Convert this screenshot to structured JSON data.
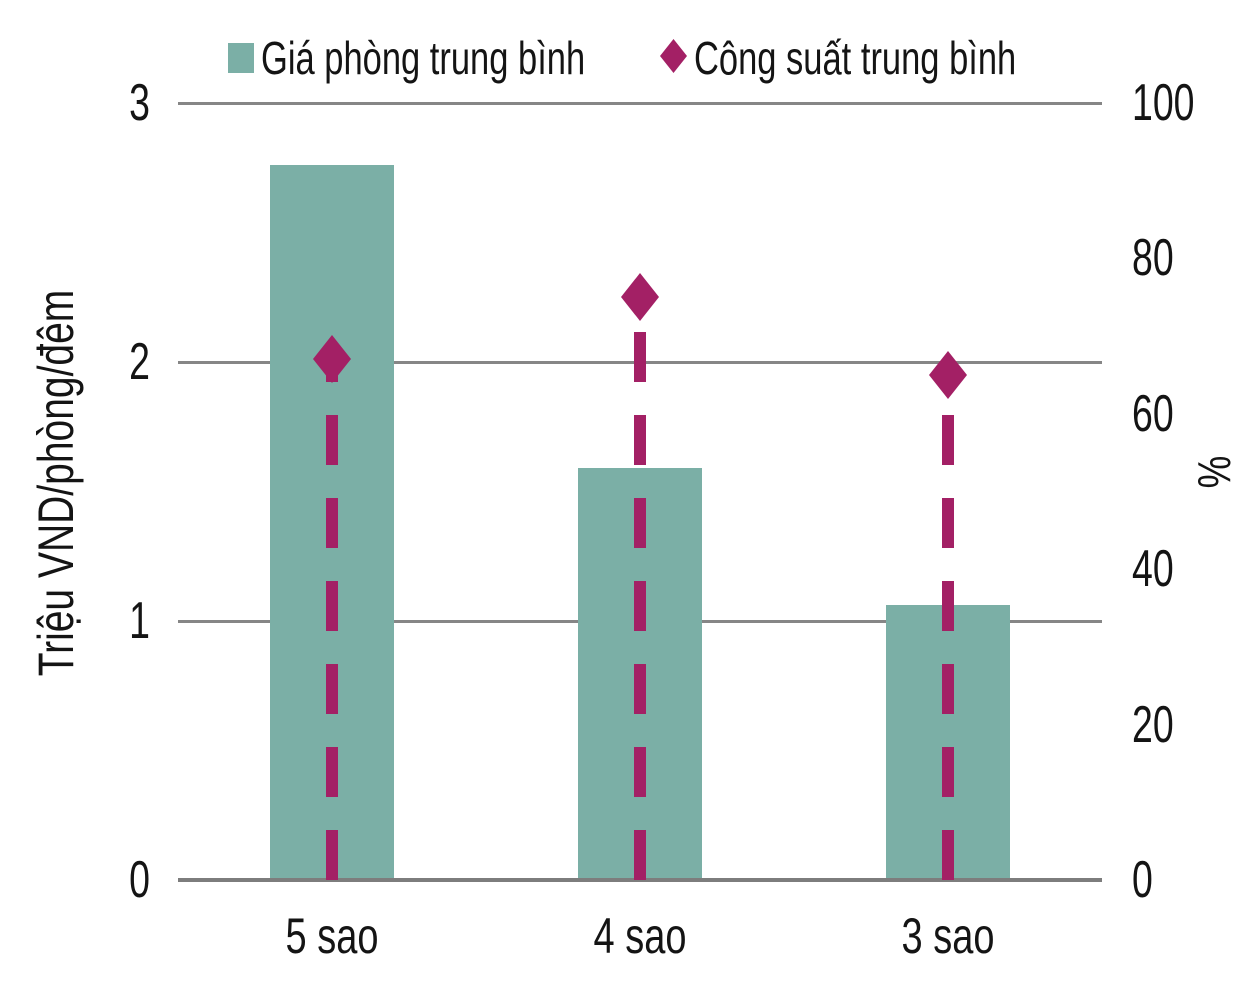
{
  "chart_data": {
    "type": "bar",
    "categories": [
      "5 sao",
      "4 sao",
      "3 sao"
    ],
    "series": [
      {
        "name": "Giá phòng trung bình",
        "type": "bar",
        "axis": "left",
        "values": [
          2.76,
          1.59,
          1.06
        ],
        "color": "#7BAFA6",
        "marker": "square"
      },
      {
        "name": "Công suất trung bình",
        "type": "scatter",
        "axis": "right",
        "values": [
          67,
          75,
          65
        ],
        "color": "#A32065",
        "marker": "diamond",
        "stem": "dashed"
      }
    ],
    "left_axis": {
      "title": "Triệu VND/phòng/đêm",
      "range": [
        0,
        3
      ],
      "ticks": [
        0,
        1,
        2,
        3
      ]
    },
    "right_axis": {
      "title": "%",
      "range": [
        0,
        100
      ],
      "ticks": [
        0,
        20,
        40,
        60,
        80,
        100
      ]
    },
    "grid": true,
    "gridline_color": "#868686",
    "legend_position": "top",
    "background": "#ffffff"
  }
}
